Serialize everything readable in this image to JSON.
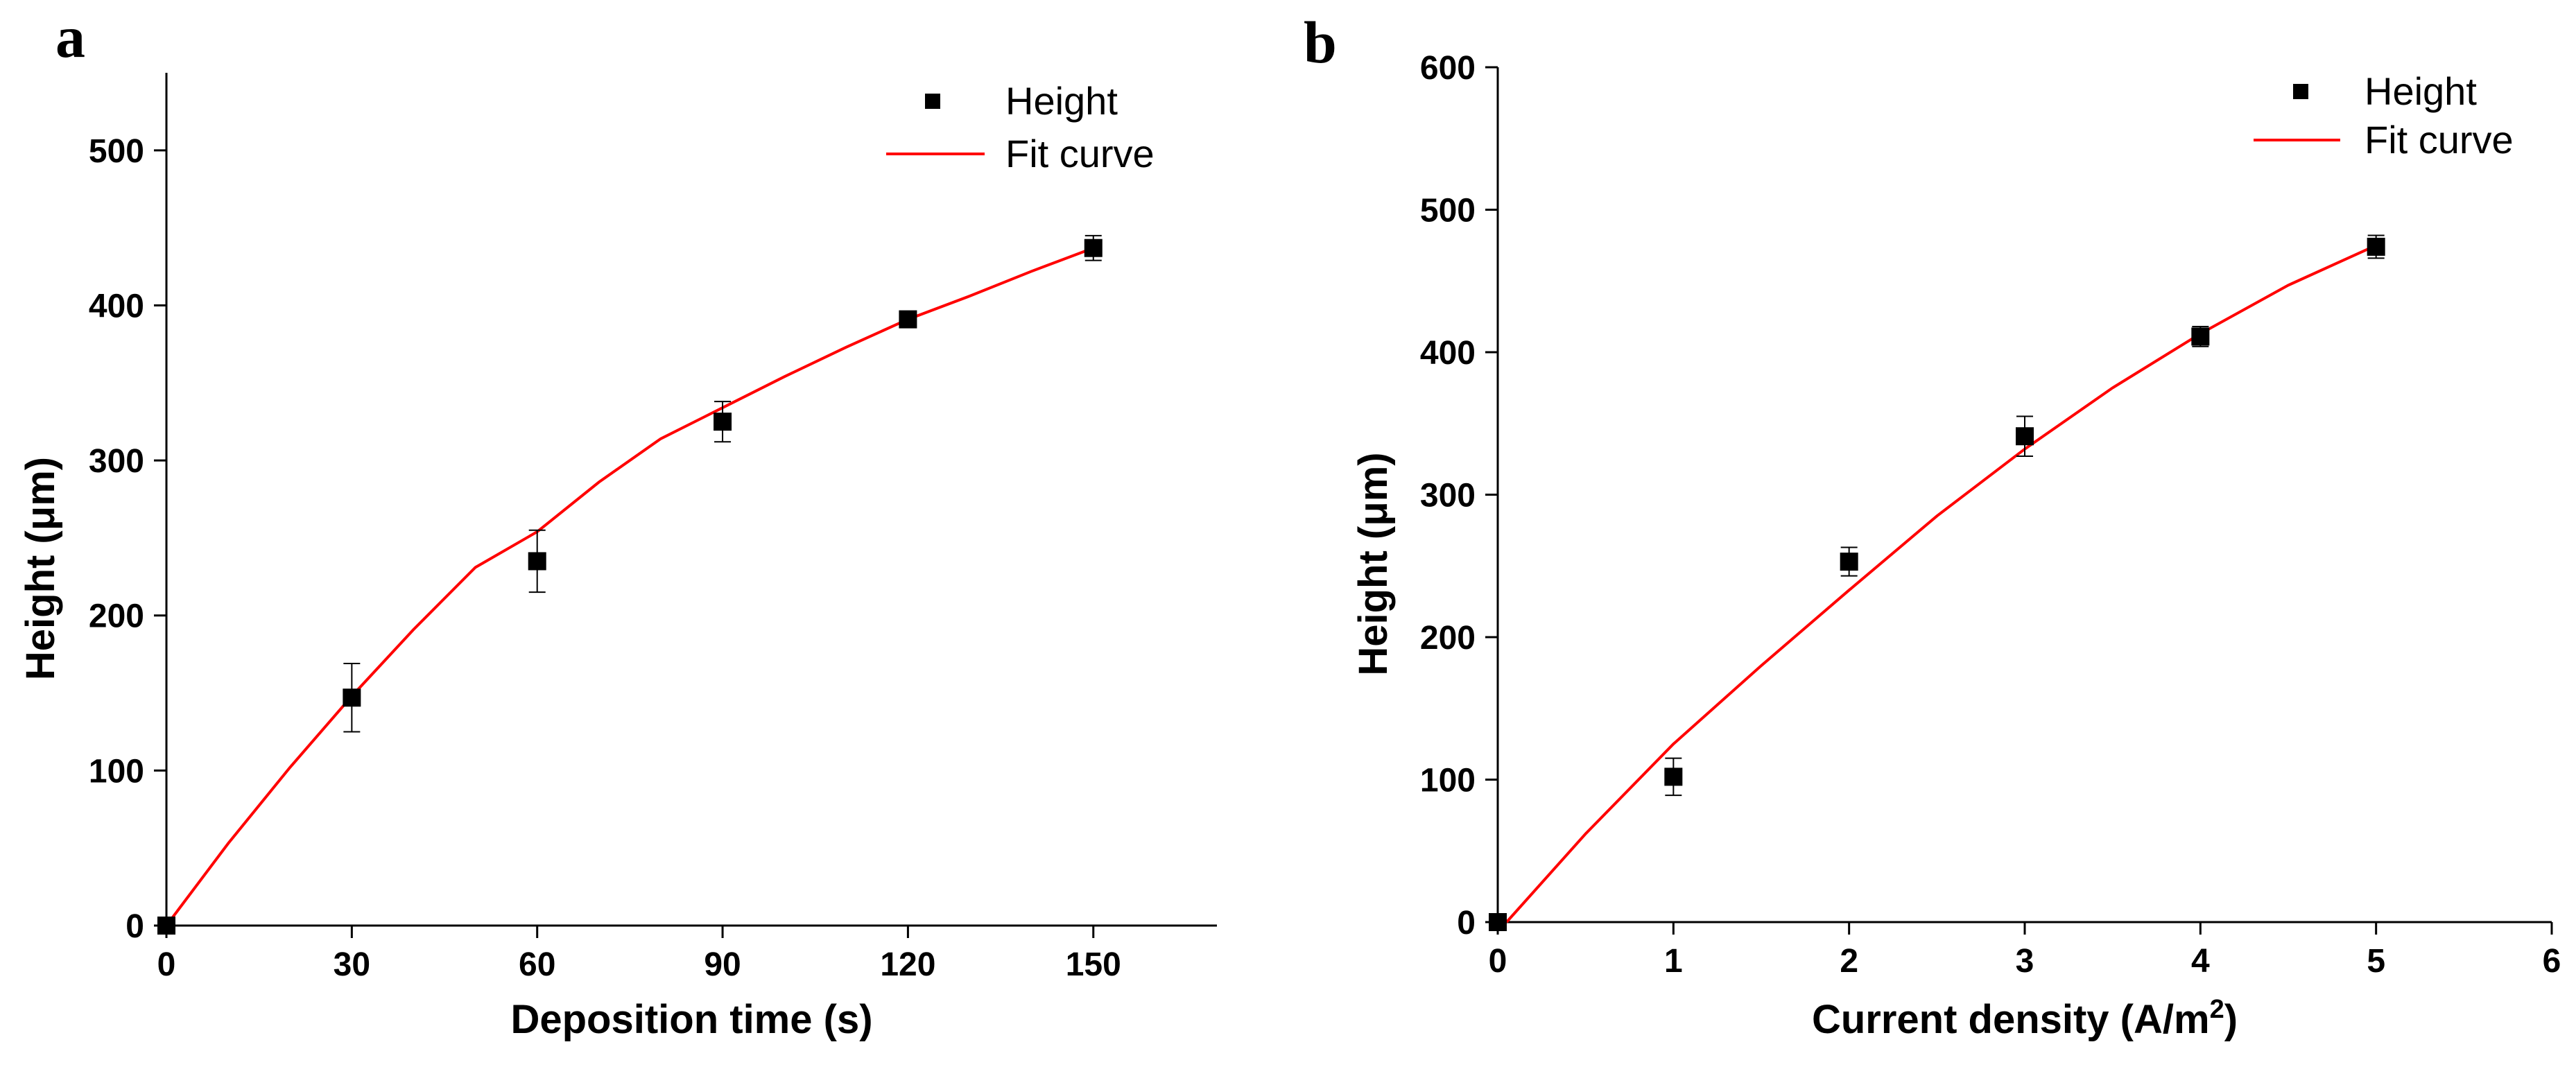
{
  "figure": {
    "colors": {
      "marker": "#000000",
      "fit_line": "#ff0000",
      "axis": "#000000",
      "background": "#ffffff"
    }
  },
  "chart_data": [
    {
      "panel": "a",
      "type": "scatter",
      "title": "",
      "xlabel": "Deposition time (s)",
      "ylabel": "Height (μm)",
      "xlim": [
        0,
        170
      ],
      "ylim": [
        0,
        550
      ],
      "xticks": [
        0,
        30,
        60,
        90,
        120,
        150
      ],
      "yticks": [
        0,
        100,
        200,
        300,
        400,
        500
      ],
      "grid": false,
      "legend": {
        "position": "top-right",
        "entries": [
          "Height",
          "Fit curve"
        ]
      },
      "series": [
        {
          "name": "Height",
          "kind": "points-with-error-bars",
          "x": [
            0,
            30,
            60,
            90,
            120,
            150
          ],
          "y": [
            0,
            147,
            235,
            325,
            391,
            437
          ],
          "error": [
            0,
            22,
            20,
            13,
            5,
            8
          ]
        },
        {
          "name": "Fit curve",
          "kind": "line",
          "x": [
            0,
            10,
            20,
            30,
            40,
            50,
            60,
            70,
            80,
            90,
            100,
            110,
            120,
            130,
            140,
            150
          ],
          "y": [
            0,
            53,
            102,
            148,
            191,
            231,
            254,
            286,
            314,
            334,
            354,
            373,
            391,
            406,
            422,
            437
          ]
        }
      ]
    },
    {
      "panel": "b",
      "type": "scatter",
      "title": "",
      "xlabel": "Current density (A/m",
      "xlabel_superscript": "2",
      "xlabel_suffix": ")",
      "ylabel": "Height (μm)",
      "xlim": [
        0,
        6
      ],
      "ylim": [
        0,
        600
      ],
      "xticks": [
        0,
        1,
        2,
        3,
        4,
        5,
        6
      ],
      "yticks": [
        0,
        100,
        200,
        300,
        400,
        500,
        600
      ],
      "grid": false,
      "legend": {
        "position": "top-right",
        "entries": [
          "Height",
          "Fit curve"
        ]
      },
      "series": [
        {
          "name": "Height",
          "kind": "points-with-error-bars",
          "x": [
            0,
            1,
            2,
            3,
            4,
            5
          ],
          "y": [
            0,
            102,
            253,
            341,
            411,
            474
          ],
          "error": [
            0,
            13,
            10,
            14,
            7,
            8
          ]
        },
        {
          "name": "Fit curve",
          "kind": "line",
          "x": [
            0.05,
            0.5,
            1,
            1.5,
            2,
            2.5,
            3,
            3.5,
            4,
            4.5,
            5
          ],
          "y": [
            0,
            62,
            125,
            180,
            233,
            285,
            332,
            375,
            413,
            447,
            475
          ]
        }
      ]
    }
  ]
}
